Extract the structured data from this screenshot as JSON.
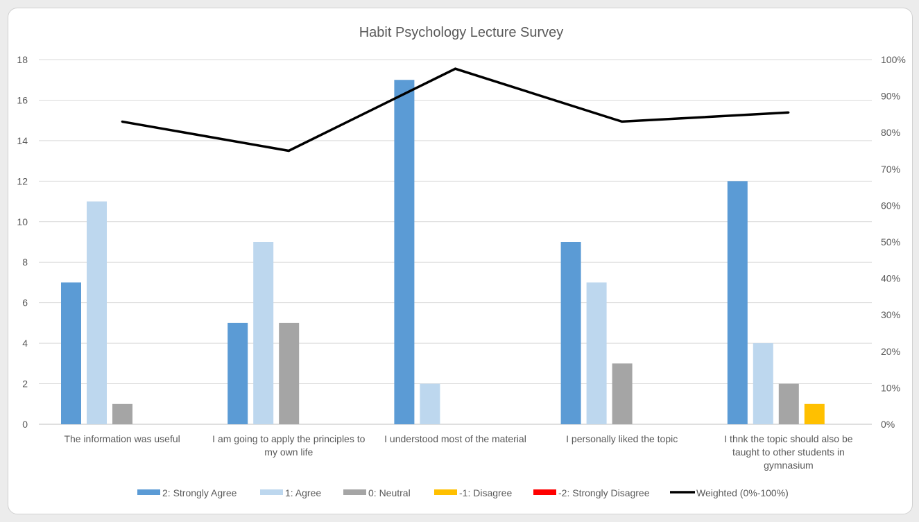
{
  "chart_data": {
    "type": "bar",
    "title": "Habit Psychology Lecture Survey",
    "categories": [
      [
        "The information was useful"
      ],
      [
        "I am going to apply the principles to",
        "my own life"
      ],
      [
        "I understood most of the material"
      ],
      [
        "I personally liked the topic"
      ],
      [
        "I thnk the topic should also be",
        "taught to other students in",
        "gymnasium"
      ]
    ],
    "series": [
      {
        "name": "2: Strongly Agree",
        "color": "#5b9bd5",
        "values": [
          7,
          5,
          17,
          9,
          12
        ]
      },
      {
        "name": "1: Agree",
        "color": "#bdd7ee",
        "values": [
          11,
          9,
          2,
          7,
          4
        ]
      },
      {
        "name": "0: Neutral",
        "color": "#a5a5a5",
        "values": [
          1,
          5,
          0,
          3,
          2
        ]
      },
      {
        "name": "-1: Disagree",
        "color": "#ffc000",
        "values": [
          0,
          0,
          0,
          0,
          1
        ]
      },
      {
        "name": "-2: Strongly Disagree",
        "color": "#ff0000",
        "values": [
          0,
          0,
          0,
          0,
          0
        ]
      }
    ],
    "line_series": {
      "name": "Weighted (0%-100%)",
      "color": "#000000",
      "values": [
        83,
        75,
        97.5,
        83,
        85.5
      ],
      "axis": "secondary"
    },
    "ylim": [
      0,
      18
    ],
    "yticks": [
      0,
      2,
      4,
      6,
      8,
      10,
      12,
      14,
      16,
      18
    ],
    "y2lim": [
      0,
      100
    ],
    "y2ticks": [
      "0%",
      "10%",
      "20%",
      "30%",
      "40%",
      "50%",
      "60%",
      "70%",
      "80%",
      "90%",
      "100%"
    ],
    "grid": true,
    "legend_position": "bottom"
  }
}
